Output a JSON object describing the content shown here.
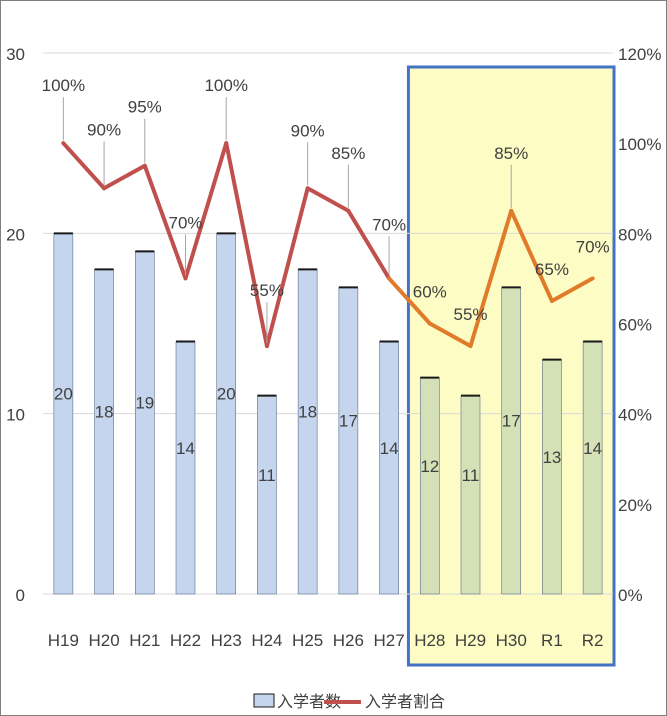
{
  "chart_data": {
    "type": "bar",
    "categories": [
      "H19",
      "H20",
      "H21",
      "H22",
      "H23",
      "H24",
      "H25",
      "H26",
      "H27",
      "H28",
      "H29",
      "H30",
      "R1",
      "R2"
    ],
    "series": [
      {
        "name": "入学者数",
        "type": "bar",
        "axis": "left",
        "values": [
          20,
          18,
          19,
          14,
          20,
          11,
          18,
          17,
          14,
          12,
          11,
          17,
          13,
          14
        ]
      },
      {
        "name": "入学者割合",
        "type": "line",
        "axis": "right",
        "values": [
          100,
          90,
          95,
          70,
          100,
          55,
          90,
          85,
          70,
          60,
          55,
          85,
          65,
          70
        ]
      }
    ],
    "bar_labels": [
      "20",
      "18",
      "19",
      "14",
      "20",
      "11",
      "18",
      "17",
      "14",
      "12",
      "11",
      "17",
      "13",
      "14"
    ],
    "line_labels": [
      "100%",
      "90%",
      "95%",
      "70%",
      "100%",
      "55%",
      "90%",
      "85%",
      "70%",
      "60%",
      "55%",
      "85%",
      "65%",
      "70%"
    ],
    "left_axis": {
      "ylim": [
        0,
        30
      ],
      "ticks": [
        "0",
        "10",
        "20",
        "30"
      ]
    },
    "right_axis": {
      "ylim": [
        0,
        120
      ],
      "ticks": [
        "0%",
        "20%",
        "40%",
        "60%",
        "80%",
        "100%",
        "120%"
      ]
    },
    "grid": true,
    "legend": {
      "position": "bottom",
      "entries": [
        "入学者数",
        "入学者割合"
      ]
    },
    "highlight": {
      "from_category": "H28",
      "to_category": "R2"
    },
    "colors": {
      "bar_normal": "#c5d5ee",
      "bar_highlight": "#d4e0b6",
      "bar_top": "#1a1a1a",
      "line_normal": "#c0504d",
      "line_highlight": "#e07b2a",
      "highlight_fill": "#fdfcc4",
      "highlight_border": "#4472c4",
      "grid": "#d9d9d9",
      "text": "#404040"
    }
  }
}
